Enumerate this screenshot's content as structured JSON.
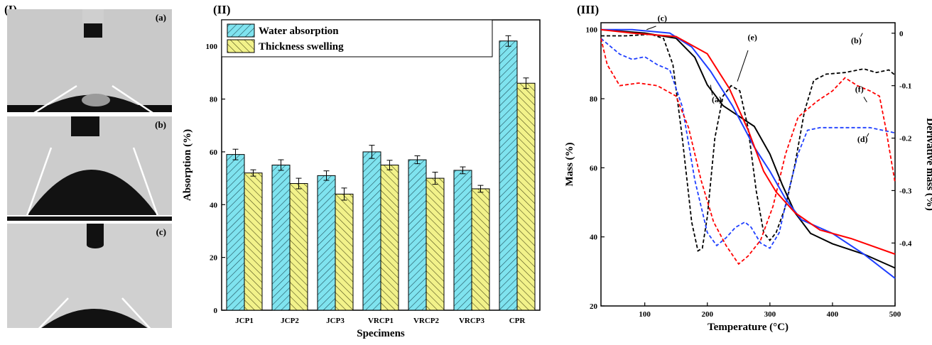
{
  "panels": {
    "panel_i": {
      "label": "(I)",
      "photos": [
        {
          "label": "(a)"
        },
        {
          "label": "(b)"
        },
        {
          "label": "(c)"
        }
      ]
    },
    "panel_ii": {
      "label": "(II)"
    },
    "panel_iii": {
      "label": "(III)"
    }
  },
  "chart_data": [
    {
      "type": "bar",
      "title": "",
      "xlabel": "Specimens",
      "ylabel": "Absorption (%)",
      "ylim": [
        0,
        110
      ],
      "yticks": [
        0,
        20,
        40,
        60,
        80,
        100
      ],
      "grid": false,
      "legend_position": "top-left",
      "categories": [
        "JCP1",
        "JCP2",
        "JCP3",
        "VRCP1",
        "VRCP2",
        "VRCP3",
        "CPR"
      ],
      "series": [
        {
          "name": "Water absorption",
          "color": "#7fe3ef",
          "hatch": "diagonal",
          "values": [
            59,
            55,
            51,
            60,
            57,
            53,
            102
          ],
          "errors": [
            2,
            2,
            1.8,
            2.5,
            1.5,
            1.3,
            2
          ]
        },
        {
          "name": "Thickness swelling",
          "color": "#f2f28a",
          "hatch": "diagonal",
          "values": [
            52,
            48,
            44,
            55,
            50,
            46,
            86
          ],
          "errors": [
            1.2,
            2,
            2.3,
            1.8,
            2.3,
            1.3,
            2
          ]
        }
      ]
    },
    {
      "type": "line",
      "title": "",
      "xlabel": "Temperature (°C)",
      "ylabel": "Mass (%)",
      "y2label": "Derivative mass (%)",
      "xlim": [
        30,
        500
      ],
      "ylim": [
        20,
        102
      ],
      "y2lim": [
        -0.52,
        0.02
      ],
      "xticks": [
        100,
        200,
        300,
        400,
        500
      ],
      "yticks": [
        20,
        40,
        60,
        80,
        100
      ],
      "y2ticks": [
        0,
        -0.1,
        -0.2,
        -0.3,
        -0.4
      ],
      "grid": false,
      "mass_series": [
        {
          "name": "(a)",
          "color": "#000000",
          "points": [
            [
              30,
              100
            ],
            [
              100,
              99
            ],
            [
              150,
              97.5
            ],
            [
              180,
              92
            ],
            [
              200,
              84
            ],
            [
              225,
              78
            ],
            [
              250,
              75
            ],
            [
              275,
              72
            ],
            [
              300,
              64
            ],
            [
              320,
              55
            ],
            [
              340,
              47
            ],
            [
              365,
              41
            ],
            [
              400,
              38
            ],
            [
              450,
              35
            ],
            [
              500,
              31
            ]
          ]
        },
        {
          "name": "(c)",
          "color": "#1f3fff",
          "points": [
            [
              30,
              100
            ],
            [
              80,
              100
            ],
            [
              140,
              99
            ],
            [
              175,
              95
            ],
            [
              205,
              88
            ],
            [
              240,
              78
            ],
            [
              275,
              66
            ],
            [
              300,
              59
            ],
            [
              325,
              51
            ],
            [
              350,
              45
            ],
            [
              400,
              41
            ],
            [
              450,
              35
            ],
            [
              500,
              28
            ]
          ]
        },
        {
          "name": "(e)",
          "color": "#ff0000",
          "points": [
            [
              30,
              100
            ],
            [
              80,
              99
            ],
            [
              150,
              98
            ],
            [
              200,
              93
            ],
            [
              235,
              83
            ],
            [
              265,
              71
            ],
            [
              290,
              59
            ],
            [
              310,
              53
            ],
            [
              340,
              47
            ],
            [
              380,
              42
            ],
            [
              430,
              39.5
            ],
            [
              500,
              35
            ]
          ]
        }
      ],
      "derivative_series": [
        {
          "name": "(b)",
          "color": "#000000",
          "points": [
            [
              30,
              -0.005
            ],
            [
              70,
              -0.005
            ],
            [
              110,
              -0.002
            ],
            [
              130,
              -0.01
            ],
            [
              145,
              -0.06
            ],
            [
              160,
              -0.2
            ],
            [
              175,
              -0.36
            ],
            [
              185,
              -0.415
            ],
            [
              192,
              -0.41
            ],
            [
              200,
              -0.35
            ],
            [
              212,
              -0.2
            ],
            [
              225,
              -0.12
            ],
            [
              238,
              -0.1
            ],
            [
              252,
              -0.11
            ],
            [
              265,
              -0.18
            ],
            [
              278,
              -0.3
            ],
            [
              290,
              -0.38
            ],
            [
              300,
              -0.395
            ],
            [
              310,
              -0.38
            ],
            [
              325,
              -0.33
            ],
            [
              340,
              -0.25
            ],
            [
              355,
              -0.15
            ],
            [
              370,
              -0.09
            ],
            [
              390,
              -0.078
            ],
            [
              420,
              -0.075
            ],
            [
              450,
              -0.068
            ],
            [
              470,
              -0.075
            ],
            [
              490,
              -0.07
            ],
            [
              500,
              -0.08
            ]
          ]
        },
        {
          "name": "(d)",
          "color": "#1f3fff",
          "points": [
            [
              30,
              -0.01
            ],
            [
              60,
              -0.04
            ],
            [
              80,
              -0.05
            ],
            [
              100,
              -0.045
            ],
            [
              120,
              -0.06
            ],
            [
              140,
              -0.07
            ],
            [
              160,
              -0.14
            ],
            [
              180,
              -0.28
            ],
            [
              200,
              -0.38
            ],
            [
              215,
              -0.405
            ],
            [
              230,
              -0.39
            ],
            [
              245,
              -0.37
            ],
            [
              260,
              -0.36
            ],
            [
              270,
              -0.37
            ],
            [
              285,
              -0.4
            ],
            [
              300,
              -0.41
            ],
            [
              315,
              -0.38
            ],
            [
              330,
              -0.3
            ],
            [
              345,
              -0.23
            ],
            [
              360,
              -0.185
            ],
            [
              380,
              -0.18
            ],
            [
              420,
              -0.18
            ],
            [
              460,
              -0.18
            ],
            [
              500,
              -0.19
            ]
          ]
        },
        {
          "name": "(f)",
          "color": "#ff0000",
          "points": [
            [
              30,
              -0.01
            ],
            [
              40,
              -0.06
            ],
            [
              60,
              -0.1
            ],
            [
              90,
              -0.095
            ],
            [
              120,
              -0.1
            ],
            [
              150,
              -0.12
            ],
            [
              170,
              -0.18
            ],
            [
              190,
              -0.28
            ],
            [
              210,
              -0.36
            ],
            [
              230,
              -0.405
            ],
            [
              250,
              -0.44
            ],
            [
              265,
              -0.425
            ],
            [
              285,
              -0.395
            ],
            [
              305,
              -0.33
            ],
            [
              325,
              -0.23
            ],
            [
              345,
              -0.16
            ],
            [
              375,
              -0.13
            ],
            [
              400,
              -0.11
            ],
            [
              420,
              -0.085
            ],
            [
              440,
              -0.1
            ],
            [
              460,
              -0.11
            ],
            [
              475,
              -0.12
            ],
            [
              485,
              -0.18
            ],
            [
              500,
              -0.285
            ]
          ]
        }
      ],
      "labels": [
        "(a)",
        "(b)",
        "(c)",
        "(d)",
        "(e)",
        "(f)"
      ]
    }
  ]
}
